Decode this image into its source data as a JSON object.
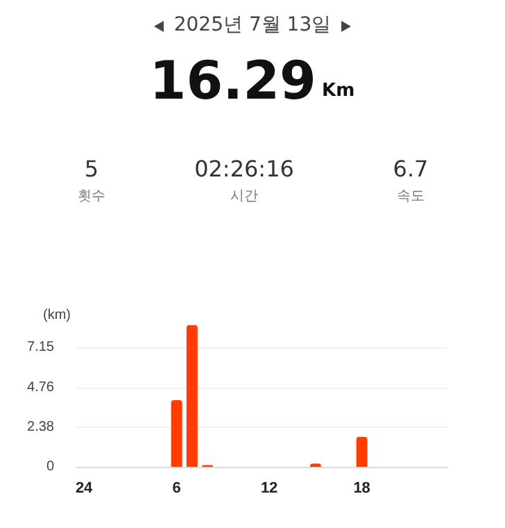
{
  "chart_data": {
    "type": "bar",
    "title": "2025년 7월 13일",
    "annotations": [
      "16.29",
      "Km",
      "5",
      "횟수",
      "02:26:16",
      "시간",
      "6.7",
      "속도"
    ],
    "ylabel": "(km)",
    "categories": [
      "24",
      null,
      null,
      null,
      null,
      null,
      "6",
      null,
      null,
      null,
      null,
      null,
      "12",
      null,
      null,
      null,
      null,
      null,
      "18",
      null,
      null,
      null,
      null,
      null
    ],
    "values": [
      0,
      0,
      0,
      0,
      0,
      0,
      4.0,
      8.5,
      0.1,
      0,
      0,
      0,
      0,
      0,
      0,
      0.2,
      0,
      0,
      1.8,
      0,
      0,
      0,
      0,
      0
    ],
    "color": "#ff3d00",
    "ylim": [
      0,
      8.5
    ],
    "yticks": [
      0,
      2.38,
      4.76,
      7.15
    ],
    "grid": "y"
  }
}
